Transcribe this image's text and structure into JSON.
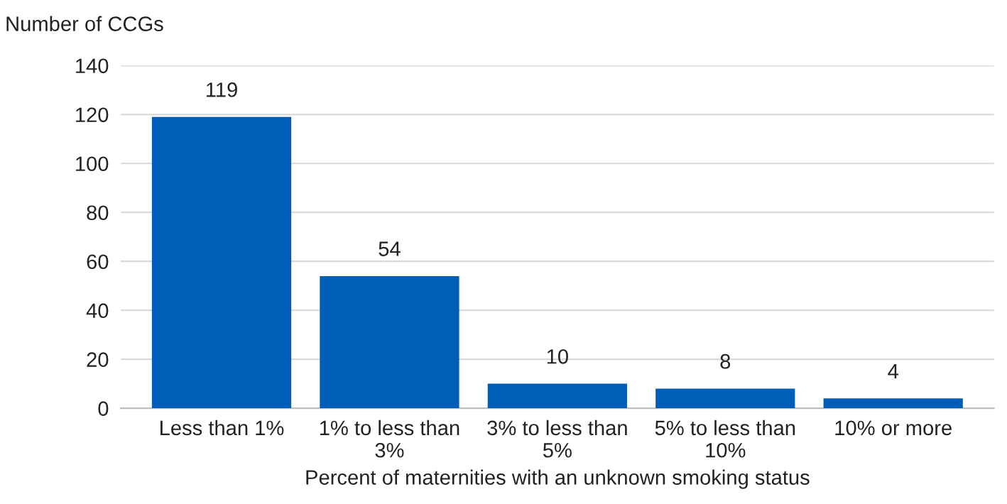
{
  "chart_data": {
    "type": "bar",
    "ylabel": "Number of CCGs",
    "xlabel": "Percent of maternities with an unknown smoking status",
    "categories": [
      "Less than 1%",
      "1% to less than\n3%",
      "3% to less than\n5%",
      "5% to less than\n10%",
      "10% or more"
    ],
    "values": [
      119,
      54,
      10,
      8,
      4
    ],
    "color": "#005eb8",
    "ylim": [
      0,
      140
    ],
    "yticks": [
      0,
      20,
      40,
      60,
      80,
      100,
      120,
      140
    ],
    "grid": "y",
    "data_labels": true
  }
}
